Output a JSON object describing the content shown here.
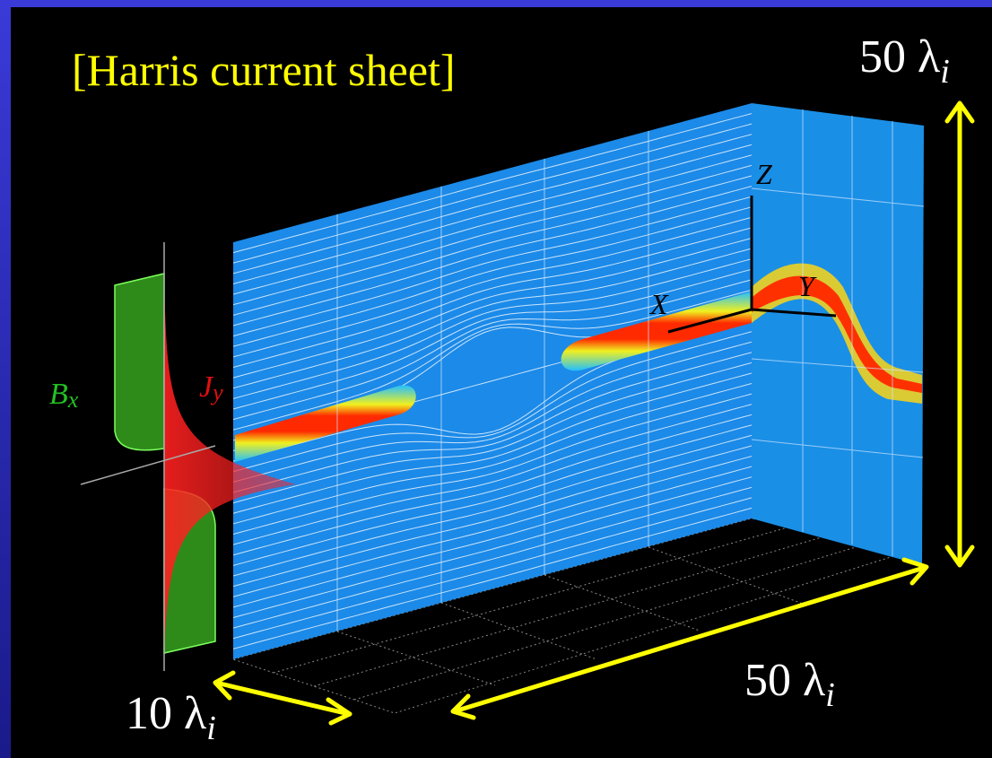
{
  "title": "[Harris current sheet]",
  "labels": {
    "height": {
      "value": "50 λ",
      "subscript": "i"
    },
    "length": {
      "value": "50 λ",
      "subscript": "i"
    },
    "width": {
      "value": "10 λ",
      "subscript": "i"
    },
    "field": {
      "symbol": "B",
      "subscript": "x"
    },
    "current": {
      "symbol": "J",
      "subscript": "y"
    }
  },
  "axes": {
    "x": "X",
    "y": "Y",
    "z": "Z"
  }
}
